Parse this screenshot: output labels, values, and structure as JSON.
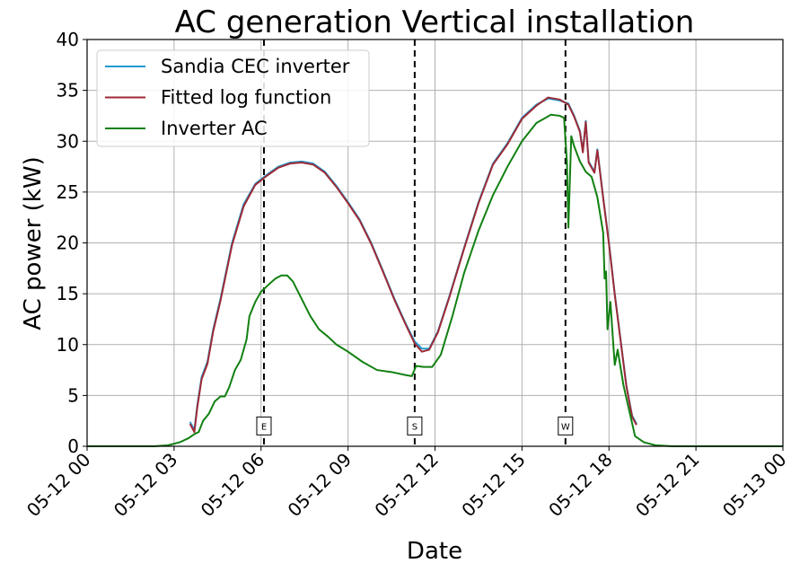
{
  "chart_data": {
    "type": "line",
    "title": "AC generation Vertical installation",
    "xlabel": "Date",
    "ylabel": "AC power (kW)",
    "xlim": [
      0,
      24
    ],
    "ylim": [
      0,
      40
    ],
    "x_unit": "hours of 2023-05-12",
    "x_ticks": [
      0,
      3,
      6,
      9,
      12,
      15,
      18,
      21,
      24
    ],
    "x_tick_labels": [
      "05-12 00",
      "05-12 03",
      "05-12 06",
      "05-12 09",
      "05-12 12",
      "05-12 15",
      "05-12 18",
      "05-12 21",
      "05-13 00"
    ],
    "y_ticks": [
      0,
      5,
      10,
      15,
      20,
      25,
      30,
      35,
      40
    ],
    "y_tick_labels": [
      "0",
      "5",
      "10",
      "15",
      "20",
      "25",
      "30",
      "35",
      "40"
    ],
    "grid": true,
    "legend_position": "top-left",
    "series": [
      {
        "name": "Sandia CEC inverter",
        "color": "#1f9bcf",
        "points": [
          [
            3.55,
            2.4
          ],
          [
            3.7,
            1.6
          ],
          [
            3.8,
            4.0
          ],
          [
            3.95,
            6.8
          ],
          [
            4.15,
            8.3
          ],
          [
            4.35,
            11.5
          ],
          [
            4.6,
            14.5
          ],
          [
            5.0,
            20.0
          ],
          [
            5.4,
            23.8
          ],
          [
            5.8,
            25.8
          ],
          [
            6.2,
            26.7
          ],
          [
            6.6,
            27.5
          ],
          [
            7.0,
            27.9
          ],
          [
            7.4,
            28.0
          ],
          [
            7.8,
            27.8
          ],
          [
            8.2,
            27.0
          ],
          [
            8.6,
            25.6
          ],
          [
            9.0,
            24.0
          ],
          [
            9.4,
            22.3
          ],
          [
            9.8,
            20.0
          ],
          [
            10.2,
            17.3
          ],
          [
            10.6,
            14.5
          ],
          [
            11.0,
            12.0
          ],
          [
            11.3,
            10.3
          ],
          [
            11.55,
            9.6
          ],
          [
            11.8,
            9.6
          ],
          [
            12.1,
            11.3
          ],
          [
            12.5,
            14.8
          ],
          [
            13.0,
            19.5
          ],
          [
            13.5,
            24.0
          ],
          [
            14.0,
            27.8
          ],
          [
            14.5,
            29.8
          ],
          [
            15.0,
            32.3
          ],
          [
            15.5,
            33.6
          ],
          [
            15.9,
            34.2
          ],
          [
            16.3,
            34.0
          ],
          [
            16.6,
            33.7
          ],
          [
            16.8,
            32.5
          ],
          [
            17.0,
            31.0
          ],
          [
            17.1,
            29.0
          ],
          [
            17.2,
            32.0
          ],
          [
            17.3,
            28.0
          ],
          [
            17.5,
            27.0
          ],
          [
            17.6,
            29.2
          ],
          [
            17.8,
            24.5
          ],
          [
            18.0,
            20.0
          ],
          [
            18.2,
            15.0
          ],
          [
            18.4,
            10.5
          ],
          [
            18.6,
            6.0
          ],
          [
            18.8,
            3.0
          ],
          [
            18.95,
            2.2
          ]
        ]
      },
      {
        "name": "Fitted log function",
        "color": "#9e2a36",
        "points": [
          [
            3.55,
            2.2
          ],
          [
            3.7,
            1.4
          ],
          [
            3.8,
            3.8
          ],
          [
            3.95,
            6.6
          ],
          [
            4.15,
            8.1
          ],
          [
            4.35,
            11.3
          ],
          [
            4.6,
            14.3
          ],
          [
            5.0,
            19.8
          ],
          [
            5.4,
            23.6
          ],
          [
            5.8,
            25.7
          ],
          [
            6.2,
            26.6
          ],
          [
            6.6,
            27.4
          ],
          [
            7.0,
            27.8
          ],
          [
            7.4,
            27.9
          ],
          [
            7.8,
            27.7
          ],
          [
            8.2,
            26.9
          ],
          [
            8.6,
            25.5
          ],
          [
            9.0,
            23.9
          ],
          [
            9.4,
            22.2
          ],
          [
            9.8,
            19.9
          ],
          [
            10.2,
            17.2
          ],
          [
            10.6,
            14.4
          ],
          [
            11.0,
            11.9
          ],
          [
            11.3,
            10.1
          ],
          [
            11.55,
            9.3
          ],
          [
            11.8,
            9.5
          ],
          [
            12.1,
            11.2
          ],
          [
            12.5,
            14.7
          ],
          [
            13.0,
            19.4
          ],
          [
            13.5,
            23.9
          ],
          [
            14.0,
            27.7
          ],
          [
            14.5,
            29.7
          ],
          [
            15.0,
            32.2
          ],
          [
            15.5,
            33.5
          ],
          [
            15.9,
            34.3
          ],
          [
            16.3,
            34.1
          ],
          [
            16.6,
            33.6
          ],
          [
            16.8,
            32.4
          ],
          [
            17.0,
            30.9
          ],
          [
            17.1,
            28.9
          ],
          [
            17.2,
            31.9
          ],
          [
            17.3,
            27.9
          ],
          [
            17.5,
            26.9
          ],
          [
            17.6,
            29.1
          ],
          [
            17.8,
            24.4
          ],
          [
            18.0,
            19.9
          ],
          [
            18.2,
            14.9
          ],
          [
            18.4,
            10.4
          ],
          [
            18.6,
            5.9
          ],
          [
            18.8,
            2.9
          ],
          [
            18.95,
            2.1
          ]
        ]
      },
      {
        "name": "Inverter AC",
        "color": "#118011",
        "points": [
          [
            0,
            0
          ],
          [
            2.3,
            0.0
          ],
          [
            2.8,
            0.1
          ],
          [
            3.2,
            0.4
          ],
          [
            3.5,
            0.8
          ],
          [
            3.7,
            1.2
          ],
          [
            3.85,
            1.4
          ],
          [
            4.0,
            2.5
          ],
          [
            4.2,
            3.2
          ],
          [
            4.4,
            4.4
          ],
          [
            4.6,
            4.9
          ],
          [
            4.75,
            4.9
          ],
          [
            4.9,
            5.8
          ],
          [
            5.1,
            7.5
          ],
          [
            5.3,
            8.5
          ],
          [
            5.5,
            10.5
          ],
          [
            5.6,
            12.8
          ],
          [
            5.8,
            14.2
          ],
          [
            6.0,
            15.2
          ],
          [
            6.3,
            16.0
          ],
          [
            6.5,
            16.5
          ],
          [
            6.7,
            16.8
          ],
          [
            6.9,
            16.8
          ],
          [
            7.1,
            16.2
          ],
          [
            7.4,
            14.5
          ],
          [
            7.7,
            12.8
          ],
          [
            8.0,
            11.5
          ],
          [
            8.3,
            10.8
          ],
          [
            8.6,
            10.0
          ],
          [
            9.0,
            9.3
          ],
          [
            9.5,
            8.3
          ],
          [
            10.0,
            7.5
          ],
          [
            10.5,
            7.3
          ],
          [
            11.0,
            7.0
          ],
          [
            11.2,
            6.9
          ],
          [
            11.35,
            7.9
          ],
          [
            11.6,
            7.8
          ],
          [
            11.9,
            7.8
          ],
          [
            12.2,
            9.0
          ],
          [
            12.6,
            12.8
          ],
          [
            13.0,
            17.0
          ],
          [
            13.5,
            21.2
          ],
          [
            14.0,
            24.7
          ],
          [
            14.5,
            27.5
          ],
          [
            15.0,
            30.0
          ],
          [
            15.5,
            31.8
          ],
          [
            16.0,
            32.6
          ],
          [
            16.3,
            32.5
          ],
          [
            16.45,
            32.3
          ],
          [
            16.55,
            28.0
          ],
          [
            16.6,
            21.5
          ],
          [
            16.7,
            30.5
          ],
          [
            16.8,
            29.5
          ],
          [
            17.0,
            28.0
          ],
          [
            17.2,
            27.0
          ],
          [
            17.4,
            26.5
          ],
          [
            17.6,
            24.5
          ],
          [
            17.8,
            21.0
          ],
          [
            17.85,
            16.5
          ],
          [
            17.9,
            17.2
          ],
          [
            17.95,
            11.5
          ],
          [
            18.05,
            14.2
          ],
          [
            18.15,
            10.0
          ],
          [
            18.2,
            8.0
          ],
          [
            18.3,
            9.5
          ],
          [
            18.5,
            6.0
          ],
          [
            18.7,
            3.5
          ],
          [
            18.9,
            1.0
          ],
          [
            19.2,
            0.4
          ],
          [
            19.6,
            0.1
          ],
          [
            20.2,
            0.0
          ],
          [
            24,
            0
          ]
        ]
      }
    ],
    "vertical_markers": [
      {
        "x": 6.1,
        "label": "E"
      },
      {
        "x": 11.3,
        "label": "S"
      },
      {
        "x": 16.5,
        "label": "W"
      }
    ]
  }
}
